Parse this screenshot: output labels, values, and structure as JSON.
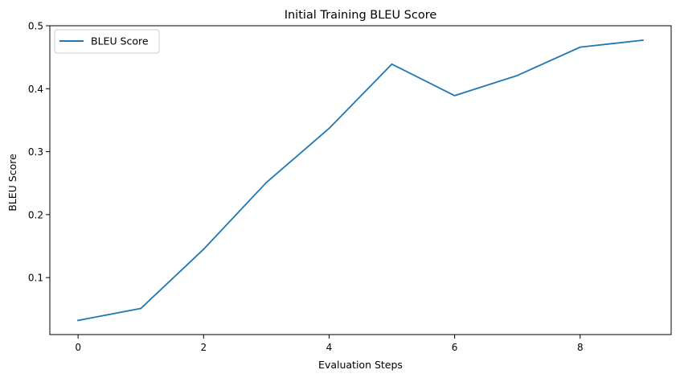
{
  "chart_data": {
    "type": "line",
    "title": "Initial Training BLEU Score",
    "xlabel": "Evaluation Steps",
    "ylabel": "BLEU Score",
    "x": [
      0,
      1,
      2,
      3,
      4,
      5,
      6,
      7,
      8,
      9
    ],
    "series": [
      {
        "name": "BLEU Score",
        "color": "#1f77b4",
        "values": [
          0.032,
          0.051,
          0.145,
          0.251,
          0.337,
          0.439,
          0.389,
          0.421,
          0.466,
          0.477
        ]
      }
    ],
    "xlim": [
      -0.45,
      9.45
    ],
    "ylim": [
      0.0095,
      0.5
    ],
    "xticks": [
      0,
      2,
      4,
      6,
      8
    ],
    "yticks": [
      0.1,
      0.2,
      0.3,
      0.4,
      0.5
    ],
    "xtick_labels": [
      "0",
      "2",
      "4",
      "6",
      "8"
    ],
    "ytick_labels": [
      "0.1",
      "0.2",
      "0.3",
      "0.4",
      "0.5"
    ],
    "grid": false,
    "legend_position": "top-left"
  }
}
